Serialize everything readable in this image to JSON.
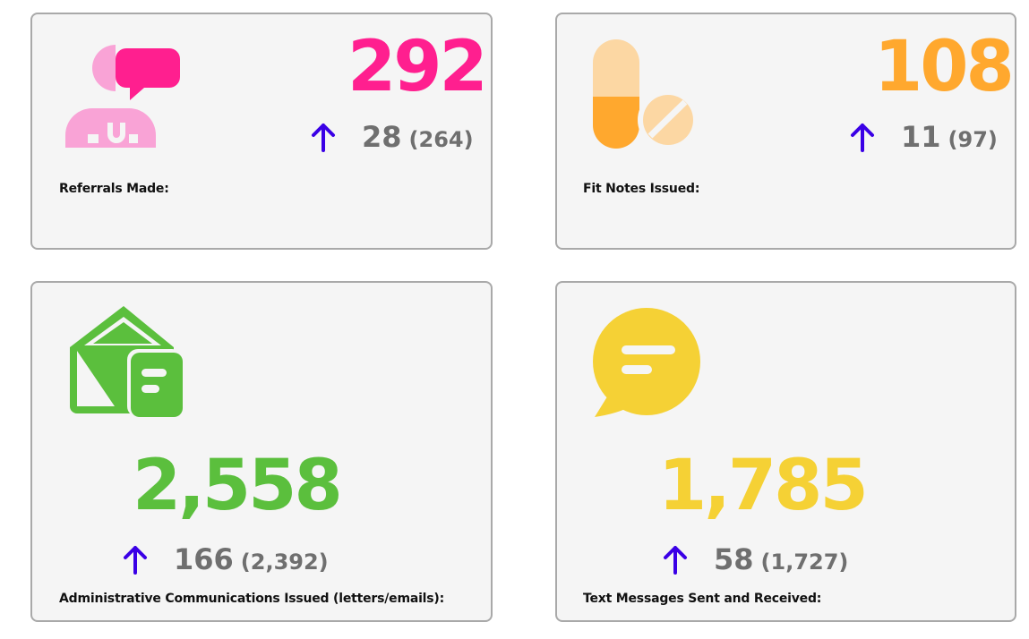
{
  "colors": {
    "pink": "#ff1f8f",
    "pink_light": "#f9a3d6",
    "orange": "#ffa82e",
    "orange_light": "#fcd7a3",
    "green": "#5bbf3d",
    "yellow": "#f5d135",
    "arrow": "#3a00e6",
    "delta_text": "#6f6f6f",
    "card_bg": "#f5f5f5",
    "card_border": "#a9a9a9"
  },
  "cards": [
    {
      "id": "referrals",
      "icon": "doctor-chat-icon",
      "value": "292",
      "delta": "28",
      "previous": "(264)",
      "trend": "up-arrow-icon",
      "label": "Referrals Made:"
    },
    {
      "id": "fitnotes",
      "icon": "pill-icon",
      "value": "108",
      "delta": "11",
      "previous": "(97)",
      "trend": "up-arrow-icon",
      "label": "Fit Notes Issued:"
    },
    {
      "id": "admin",
      "icon": "envelope-letter-icon",
      "value": "2,558",
      "delta": "166",
      "previous": "(2,392)",
      "trend": "up-arrow-icon",
      "label": "Administrative Communications Issued (letters/emails):"
    },
    {
      "id": "text",
      "icon": "speech-bubble-icon",
      "value": "1,785",
      "delta": "58",
      "previous": "(1,727)",
      "trend": "up-arrow-icon",
      "label": "Text Messages Sent and Received:"
    }
  ]
}
